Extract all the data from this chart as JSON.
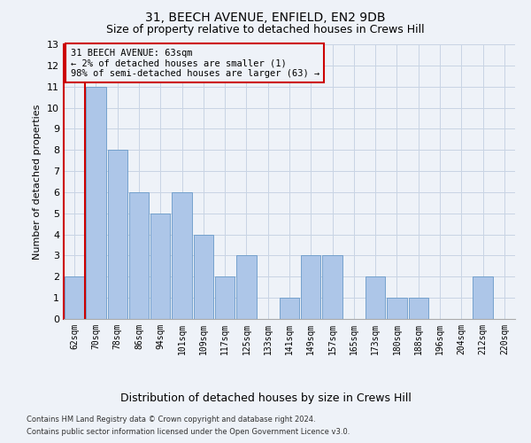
{
  "title1": "31, BEECH AVENUE, ENFIELD, EN2 9DB",
  "title2": "Size of property relative to detached houses in Crews Hill",
  "xlabel": "Distribution of detached houses by size in Crews Hill",
  "ylabel": "Number of detached properties",
  "footer1": "Contains HM Land Registry data © Crown copyright and database right 2024.",
  "footer2": "Contains public sector information licensed under the Open Government Licence v3.0.",
  "annotation_line1": "31 BEECH AVENUE: 63sqm",
  "annotation_line2": "← 2% of detached houses are smaller (1)",
  "annotation_line3": "98% of semi-detached houses are larger (63) →",
  "categories": [
    "62sqm",
    "70sqm",
    "78sqm",
    "86sqm",
    "94sqm",
    "101sqm",
    "109sqm",
    "117sqm",
    "125sqm",
    "133sqm",
    "141sqm",
    "149sqm",
    "157sqm",
    "165sqm",
    "173sqm",
    "180sqm",
    "188sqm",
    "196sqm",
    "204sqm",
    "212sqm",
    "220sqm"
  ],
  "values": [
    2,
    11,
    8,
    6,
    5,
    6,
    4,
    2,
    3,
    0,
    1,
    3,
    3,
    0,
    2,
    1,
    1,
    0,
    0,
    2,
    0
  ],
  "bar_color": "#adc6e8",
  "bar_edge_color": "#6899c8",
  "ylim": [
    0,
    13
  ],
  "yticks": [
    0,
    1,
    2,
    3,
    4,
    5,
    6,
    7,
    8,
    9,
    10,
    11,
    12,
    13
  ],
  "grid_color": "#c8d4e4",
  "annotation_box_edge": "#cc0000",
  "bg_color": "#eef2f8",
  "title1_fontsize": 10,
  "title2_fontsize": 9,
  "ylabel_fontsize": 8,
  "xlabel_fontsize": 9,
  "tick_fontsize": 7,
  "ytick_fontsize": 8,
  "footer_fontsize": 6,
  "ann_fontsize": 7.5
}
